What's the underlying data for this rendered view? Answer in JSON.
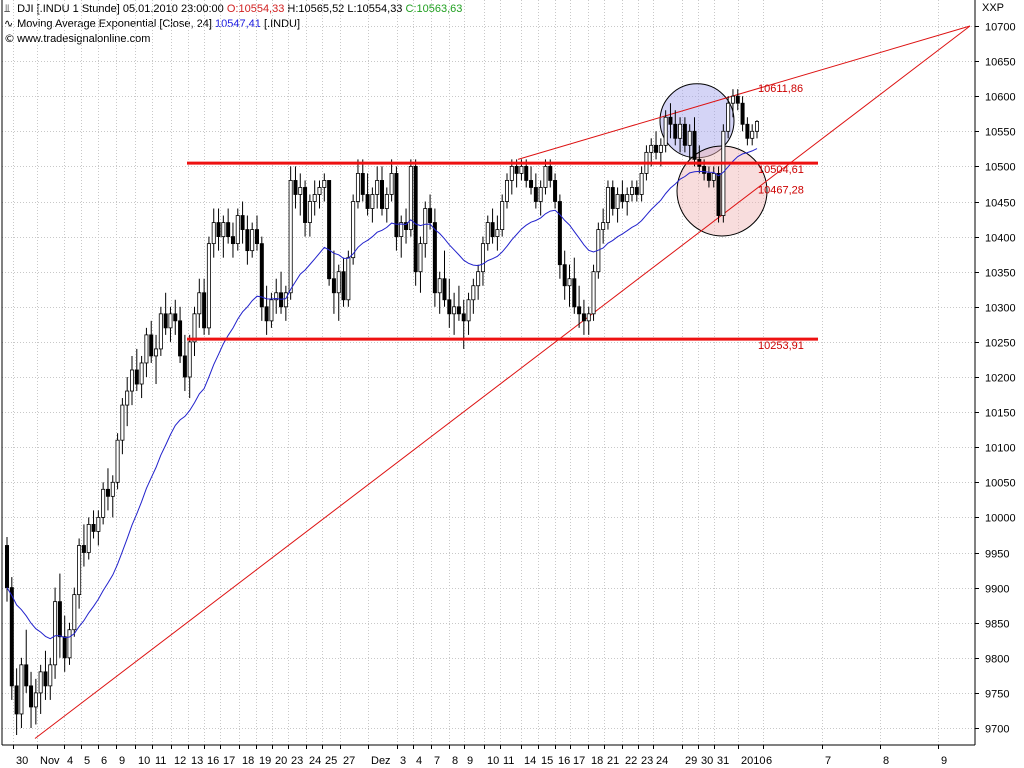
{
  "header": {
    "line1": {
      "symbol": "DJI [.INDU  1 Stunde]",
      "datetime": "05.01.2010 23:00:00",
      "open_label": "O:",
      "open_value": "10554,33",
      "high": "H:10565,52",
      "low": "L:10554,33",
      "close_label": "C:",
      "close_value": "10563,63"
    },
    "line2": {
      "label": "Moving Average Exponential [Close, 24]",
      "value": "10547,41",
      "symbol": "[.INDU]"
    },
    "line3": {
      "text": "www.tradesignalonline.com"
    }
  },
  "scale_name": "XXP",
  "colors": {
    "candle": "#000000",
    "ema": "#2222cc",
    "support_resistance": "#ee1111",
    "trendline": "#dd1111",
    "circle_blue_fill": "rgba(160,160,235,0.45)",
    "circle_red_fill": "rgba(240,180,180,0.45)",
    "grid": "#c8c8c8"
  },
  "chart_data": {
    "type": "candlestick",
    "instrument": "DJI [.INDU]",
    "interval": "1 Stunde",
    "y_axis": {
      "side": "right",
      "ylim": [
        9680,
        10720
      ],
      "ticks": [
        9700,
        9750,
        9800,
        9850,
        9900,
        9950,
        10000,
        10050,
        10100,
        10150,
        10200,
        10250,
        10300,
        10350,
        10400,
        10450,
        10500,
        10550,
        10600,
        10650,
        10700
      ]
    },
    "x_axis": {
      "labels": [
        "30",
        "Nov",
        "4",
        "5",
        "6",
        "9",
        "10",
        "11",
        "12",
        "13",
        "16",
        "17",
        "18",
        "19",
        "20",
        "23",
        "24",
        "25",
        "27",
        "Dez",
        "3",
        "4",
        "7",
        "8",
        "9",
        "10",
        "11",
        "14",
        "15",
        "16",
        "17",
        "18",
        "21",
        "22",
        "23",
        "24",
        "29",
        "30",
        "31",
        "2010",
        "6",
        "7",
        "8",
        "9"
      ]
    },
    "grid": true,
    "legend": "top-left",
    "ohlc": [
      [
        9960,
        9972,
        9880,
        9900
      ],
      [
        9900,
        9915,
        9740,
        9760
      ],
      [
        9760,
        9785,
        9690,
        9720
      ],
      [
        9720,
        9800,
        9700,
        9790
      ],
      [
        9790,
        9840,
        9750,
        9760
      ],
      [
        9760,
        9780,
        9700,
        9730
      ],
      [
        9730,
        9770,
        9705,
        9750
      ],
      [
        9750,
        9790,
        9720,
        9780
      ],
      [
        9780,
        9810,
        9740,
        9760
      ],
      [
        9760,
        9800,
        9740,
        9790
      ],
      [
        9790,
        9900,
        9770,
        9880
      ],
      [
        9880,
        9920,
        9800,
        9830
      ],
      [
        9830,
        9860,
        9780,
        9800
      ],
      [
        9800,
        9850,
        9790,
        9840
      ],
      [
        9840,
        9900,
        9830,
        9890
      ],
      [
        9890,
        9970,
        9870,
        9960
      ],
      [
        9960,
        9990,
        9930,
        9950
      ],
      [
        9950,
        10000,
        9940,
        9990
      ],
      [
        9990,
        10010,
        9970,
        9980
      ],
      [
        9980,
        10010,
        9960,
        10000
      ],
      [
        10000,
        10050,
        9990,
        10040
      ],
      [
        10040,
        10070,
        10010,
        10030
      ],
      [
        10030,
        10060,
        10000,
        10050
      ],
      [
        10050,
        10120,
        10040,
        10110
      ],
      [
        10110,
        10170,
        10090,
        10160
      ],
      [
        10160,
        10200,
        10130,
        10180
      ],
      [
        10180,
        10230,
        10160,
        10210
      ],
      [
        10210,
        10240,
        10180,
        10190
      ],
      [
        10190,
        10230,
        10170,
        10220
      ],
      [
        10220,
        10270,
        10200,
        10260
      ],
      [
        10260,
        10280,
        10220,
        10230
      ],
      [
        10230,
        10260,
        10190,
        10240
      ],
      [
        10240,
        10300,
        10230,
        10290
      ],
      [
        10290,
        10320,
        10260,
        10270
      ],
      [
        10270,
        10300,
        10250,
        10290
      ],
      [
        10290,
        10310,
        10260,
        10280
      ],
      [
        10280,
        10300,
        10220,
        10230
      ],
      [
        10230,
        10260,
        10180,
        10200
      ],
      [
        10200,
        10260,
        10170,
        10250
      ],
      [
        10250,
        10300,
        10230,
        10290
      ],
      [
        10290,
        10340,
        10270,
        10320
      ],
      [
        10320,
        10340,
        10260,
        10270
      ],
      [
        10270,
        10400,
        10260,
        10390
      ],
      [
        10390,
        10440,
        10370,
        10420
      ],
      [
        10420,
        10440,
        10380,
        10400
      ],
      [
        10400,
        10430,
        10370,
        10420
      ],
      [
        10420,
        10440,
        10390,
        10400
      ],
      [
        10400,
        10420,
        10370,
        10390
      ],
      [
        10390,
        10440,
        10380,
        10430
      ],
      [
        10430,
        10450,
        10390,
        10410
      ],
      [
        10410,
        10430,
        10360,
        10380
      ],
      [
        10380,
        10420,
        10370,
        10410
      ],
      [
        10410,
        10430,
        10380,
        10390
      ],
      [
        10390,
        10400,
        10280,
        10300
      ],
      [
        10300,
        10330,
        10260,
        10280
      ],
      [
        10280,
        10320,
        10270,
        10310
      ],
      [
        10310,
        10340,
        10290,
        10320
      ],
      [
        10320,
        10350,
        10290,
        10300
      ],
      [
        10300,
        10330,
        10280,
        10320
      ],
      [
        10320,
        10500,
        10310,
        10480
      ],
      [
        10480,
        10500,
        10440,
        10460
      ],
      [
        10460,
        10490,
        10430,
        10470
      ],
      [
        10470,
        10480,
        10400,
        10420
      ],
      [
        10420,
        10460,
        10400,
        10450
      ],
      [
        10450,
        10480,
        10430,
        10460
      ],
      [
        10460,
        10480,
        10440,
        10470
      ],
      [
        10470,
        10490,
        10450,
        10480
      ],
      [
        10480,
        10480,
        10330,
        10340
      ],
      [
        10340,
        10380,
        10290,
        10320
      ],
      [
        10320,
        10360,
        10280,
        10350
      ],
      [
        10350,
        10370,
        10300,
        10310
      ],
      [
        10310,
        10380,
        10300,
        10370
      ],
      [
        10370,
        10460,
        10360,
        10450
      ],
      [
        10450,
        10510,
        10440,
        10490
      ],
      [
        10490,
        10510,
        10450,
        10460
      ],
      [
        10460,
        10490,
        10430,
        10440
      ],
      [
        10440,
        10470,
        10420,
        10460
      ],
      [
        10460,
        10500,
        10440,
        10480
      ],
      [
        10480,
        10500,
        10430,
        10440
      ],
      [
        10440,
        10470,
        10420,
        10460
      ],
      [
        10460,
        10510,
        10450,
        10490
      ],
      [
        10490,
        10500,
        10380,
        10400
      ],
      [
        10400,
        10430,
        10370,
        10420
      ],
      [
        10420,
        10440,
        10390,
        10410
      ],
      [
        10410,
        10510,
        10400,
        10500
      ],
      [
        10500,
        10510,
        10330,
        10350
      ],
      [
        10350,
        10400,
        10320,
        10390
      ],
      [
        10390,
        10450,
        10370,
        10440
      ],
      [
        10440,
        10460,
        10410,
        10420
      ],
      [
        10420,
        10440,
        10300,
        10320
      ],
      [
        10320,
        10350,
        10290,
        10340
      ],
      [
        10340,
        10380,
        10300,
        10310
      ],
      [
        10310,
        10340,
        10270,
        10290
      ],
      [
        10290,
        10320,
        10260,
        10300
      ],
      [
        10300,
        10330,
        10280,
        10290
      ],
      [
        10290,
        10310,
        10240,
        10280
      ],
      [
        10280,
        10320,
        10260,
        10310
      ],
      [
        10310,
        10340,
        10290,
        10330
      ],
      [
        10330,
        10360,
        10310,
        10350
      ],
      [
        10350,
        10400,
        10330,
        10390
      ],
      [
        10390,
        10430,
        10380,
        10420
      ],
      [
        10420,
        10440,
        10390,
        10400
      ],
      [
        10400,
        10430,
        10380,
        10410
      ],
      [
        10410,
        10460,
        10400,
        10450
      ],
      [
        10450,
        10490,
        10440,
        10480
      ],
      [
        10480,
        10510,
        10460,
        10500
      ],
      [
        10500,
        10510,
        10470,
        10490
      ],
      [
        10490,
        10510,
        10480,
        10500
      ],
      [
        10500,
        10510,
        10470,
        10480
      ],
      [
        10480,
        10500,
        10460,
        10470
      ],
      [
        10470,
        10490,
        10440,
        10450
      ],
      [
        10450,
        10480,
        10430,
        10470
      ],
      [
        10470,
        10510,
        10460,
        10500
      ],
      [
        10500,
        10510,
        10470,
        10480
      ],
      [
        10480,
        10490,
        10440,
        10450
      ],
      [
        10450,
        10460,
        10340,
        10360
      ],
      [
        10360,
        10380,
        10310,
        10330
      ],
      [
        10330,
        10360,
        10300,
        10340
      ],
      [
        10340,
        10370,
        10290,
        10300
      ],
      [
        10300,
        10330,
        10270,
        10290
      ],
      [
        10290,
        10310,
        10260,
        10280
      ],
      [
        10280,
        10300,
        10260,
        10290
      ],
      [
        10290,
        10360,
        10280,
        10350
      ],
      [
        10350,
        10420,
        10340,
        10410
      ],
      [
        10410,
        10440,
        10390,
        10420
      ],
      [
        10420,
        10480,
        10410,
        10470
      ],
      [
        10470,
        10480,
        10430,
        10440
      ],
      [
        10440,
        10470,
        10420,
        10460
      ],
      [
        10460,
        10480,
        10440,
        10450
      ],
      [
        10450,
        10470,
        10430,
        10460
      ],
      [
        10460,
        10480,
        10450,
        10470
      ],
      [
        10470,
        10480,
        10450,
        10460
      ],
      [
        10460,
        10500,
        10450,
        10490
      ],
      [
        10490,
        10530,
        10480,
        10520
      ],
      [
        10520,
        10540,
        10500,
        10530
      ],
      [
        10530,
        10550,
        10510,
        10520
      ],
      [
        10520,
        10540,
        10500,
        10530
      ],
      [
        10530,
        10580,
        10520,
        10570
      ],
      [
        10570,
        10590,
        10540,
        10560
      ],
      [
        10560,
        10580,
        10530,
        10540
      ],
      [
        10540,
        10570,
        10520,
        10560
      ],
      [
        10560,
        10570,
        10520,
        10530
      ],
      [
        10530,
        10560,
        10510,
        10550
      ],
      [
        10550,
        10570,
        10500,
        10510
      ],
      [
        10510,
        10530,
        10490,
        10500
      ],
      [
        10500,
        10510,
        10480,
        10490
      ],
      [
        10490,
        10500,
        10470,
        10480
      ],
      [
        10480,
        10500,
        10470,
        10490
      ],
      [
        10490,
        10500,
        10420,
        10430
      ],
      [
        10430,
        10560,
        10420,
        10550
      ],
      [
        10550,
        10600,
        10540,
        10590
      ],
      [
        10590,
        10610,
        10570,
        10600
      ],
      [
        10600,
        10610,
        10580,
        10590
      ],
      [
        10590,
        10600,
        10550,
        10560
      ],
      [
        10560,
        10570,
        10530,
        10540
      ],
      [
        10540,
        10560,
        10530,
        10550
      ],
      [
        10550,
        10566,
        10540,
        10564
      ]
    ],
    "ema": {
      "name": "Moving Average Exponential [Close, 24]",
      "last_value": 10547.41
    },
    "horizontal_lines": [
      {
        "price": 10504.61,
        "label": "10504,61"
      },
      {
        "price": 10253.91,
        "label": "10253,91"
      }
    ],
    "price_labels": [
      {
        "price": 10611.86,
        "label": "10611,86"
      },
      {
        "price": 10467.28,
        "label": "10467,28"
      }
    ],
    "annotations": [
      {
        "type": "circle",
        "fill": "blue",
        "center_price": 10565
      },
      {
        "type": "circle",
        "fill": "red",
        "center_price": 10465
      }
    ]
  }
}
